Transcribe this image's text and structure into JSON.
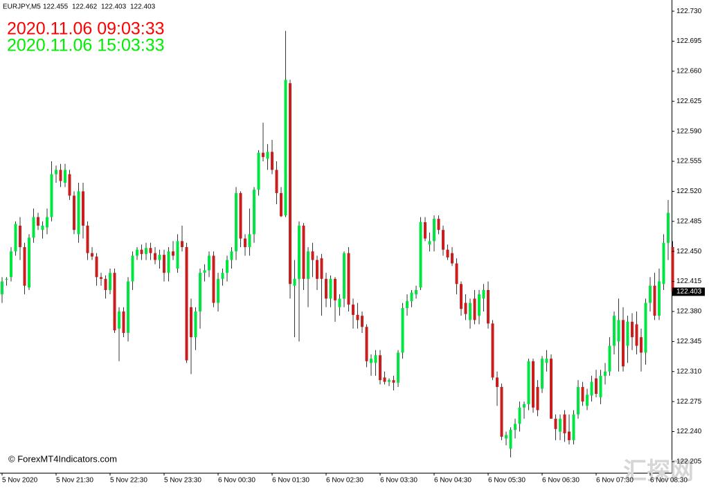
{
  "chart_data": {
    "type": "candlestick",
    "symbol": "EURJPY,M5",
    "header_values": [
      122.455,
      122.462,
      122.403,
      122.403
    ],
    "clock_local": "2020.11.06 09:03:33",
    "clock_server": "2020.11.06 15:03:33",
    "clock_local_color": "#ff0000",
    "clock_server_color": "#00ee00",
    "watermark": "© ForexMT4Indicators.com",
    "site_mark": "汇探网",
    "current_price": 122.403,
    "bull_color": "#00e640",
    "bear_color": "#c81e1e",
    "wick_color": "#333333",
    "ylim": [
      122.192,
      122.743
    ],
    "yticks": [
      {
        "value": 122.73,
        "label": "122.730"
      },
      122.695,
      {
        "value": 122.66,
        "label": "122.660"
      },
      122.625,
      {
        "value": 122.59,
        "label": "122.590"
      },
      122.555,
      {
        "value": 122.52,
        "label": "122.520"
      },
      122.485,
      {
        "value": 122.45,
        "label": "122.450"
      },
      122.415,
      {
        "value": 122.38,
        "label": "122.380"
      },
      122.345,
      {
        "value": 122.31,
        "label": "122.310"
      },
      122.275,
      {
        "value": 122.24,
        "label": "122.240"
      },
      122.205
    ],
    "categories": [
      "5 Nov 2020",
      null,
      null,
      null,
      null,
      null,
      null,
      null,
      null,
      null,
      null,
      null,
      "5 Nov 21:30",
      null,
      null,
      null,
      null,
      null,
      null,
      null,
      null,
      null,
      null,
      null,
      "5 Nov 22:30",
      null,
      null,
      null,
      null,
      null,
      null,
      null,
      null,
      null,
      null,
      null,
      "5 Nov 23:30",
      null,
      null,
      null,
      null,
      null,
      null,
      null,
      null,
      null,
      null,
      null,
      "6 Nov 00:30",
      null,
      null,
      null,
      null,
      null,
      null,
      null,
      null,
      null,
      null,
      null,
      "6 Nov 01:30",
      null,
      null,
      null,
      null,
      null,
      null,
      null,
      null,
      null,
      null,
      null,
      "6 Nov 02:30",
      null,
      null,
      null,
      null,
      null,
      null,
      null,
      null,
      null,
      null,
      null,
      "6 Nov 03:30",
      null,
      null,
      null,
      null,
      null,
      null,
      null,
      null,
      null,
      null,
      null,
      "6 Nov 04:30",
      null,
      null,
      null,
      null,
      null,
      null,
      null,
      null,
      null,
      null,
      null,
      "6 Nov 05:30",
      null,
      null,
      null,
      null,
      null,
      null,
      null,
      null,
      null,
      null,
      null,
      "6 Nov 06:30",
      null,
      null,
      null,
      null,
      null,
      null,
      null,
      null,
      null,
      null,
      null,
      "6 Nov 07:30",
      null,
      null,
      null,
      null,
      null,
      null,
      null,
      null,
      null,
      null,
      null,
      "6 Nov 08:30",
      null,
      null,
      null,
      null,
      null
    ],
    "open": [
      122.4,
      122.417,
      122.42,
      122.45,
      122.48,
      122.455,
      122.408,
      122.466,
      122.49,
      122.475,
      122.478,
      122.49,
      122.54,
      122.545,
      122.53,
      122.54,
      122.515,
      122.47,
      122.52,
      122.48,
      122.448,
      122.444,
      122.42,
      122.418,
      122.405,
      122.425,
      122.36,
      122.38,
      122.355,
      122.415,
      122.445,
      122.452,
      122.447,
      122.454,
      122.448,
      122.44,
      122.446,
      122.425,
      122.45,
      122.43,
      122.462,
      122.455,
      122.385,
      122.35,
      122.38,
      122.425,
      122.428,
      122.445,
      122.39,
      122.418,
      122.425,
      122.44,
      122.45,
      122.518,
      122.465,
      122.455,
      122.47,
      122.522,
      122.565,
      122.558,
      122.566,
      122.545,
      122.518,
      122.492,
      122.646,
      122.41,
      122.418,
      122.48,
      122.418,
      122.45,
      122.44,
      122.442,
      122.418,
      122.395,
      122.418,
      122.385,
      122.395,
      122.448,
      122.388,
      122.376,
      122.375,
      122.362,
      122.32,
      122.32,
      122.329,
      122.303,
      122.298,
      122.3,
      122.297,
      122.332,
      122.384,
      122.392,
      122.4,
      122.408,
      122.484,
      122.458,
      122.462,
      122.488,
      122.475,
      122.452,
      122.448,
      122.436,
      122.412,
      122.39,
      122.37,
      122.395,
      122.375,
      122.395,
      122.405,
      122.366,
      122.303,
      122.292,
      122.232,
      122.22,
      122.242,
      122.249,
      122.268,
      122.272,
      122.322,
      122.292,
      122.29,
      122.32,
      122.325,
      122.255,
      122.24,
      122.26,
      122.24,
      122.23,
      122.26,
      122.292,
      122.27,
      122.282,
      122.302,
      122.28,
      122.305,
      122.31,
      122.34,
      122.345,
      122.37,
      122.34,
      122.368,
      122.365,
      122.35,
      122.332,
      122.39,
      122.41,
      122.375,
      122.412,
      122.46,
      122.455
    ],
    "high": [
      122.42,
      122.42,
      122.455,
      122.485,
      122.49,
      122.46,
      122.47,
      122.5,
      122.495,
      122.485,
      122.5,
      122.555,
      122.55,
      122.552,
      122.552,
      122.545,
      122.52,
      122.53,
      122.53,
      122.485,
      122.455,
      122.448,
      122.425,
      122.422,
      122.43,
      122.43,
      122.385,
      122.385,
      122.42,
      122.45,
      122.455,
      122.458,
      122.46,
      122.46,
      122.455,
      122.452,
      122.452,
      122.455,
      122.462,
      122.47,
      122.48,
      122.46,
      122.395,
      122.385,
      122.43,
      122.435,
      122.45,
      122.45,
      122.425,
      122.43,
      122.445,
      122.455,
      122.525,
      122.52,
      122.47,
      122.5,
      122.525,
      122.568,
      122.6,
      122.575,
      122.58,
      122.555,
      122.525,
      122.707,
      122.65,
      122.44,
      122.485,
      122.483,
      122.455,
      122.46,
      122.445,
      122.447,
      122.425,
      122.422,
      122.42,
      122.4,
      122.45,
      122.455,
      122.395,
      122.39,
      122.38,
      122.365,
      122.33,
      122.335,
      122.335,
      122.31,
      122.302,
      122.305,
      122.335,
      122.39,
      122.4,
      122.405,
      122.41,
      122.49,
      122.49,
      122.472,
      122.492,
      122.492,
      122.48,
      122.458,
      122.455,
      122.442,
      122.415,
      122.4,
      122.395,
      122.405,
      122.405,
      122.412,
      122.415,
      122.37,
      122.31,
      122.296,
      122.24,
      122.245,
      122.255,
      122.275,
      122.275,
      122.325,
      122.325,
      122.3,
      122.328,
      122.335,
      122.33,
      122.26,
      122.26,
      122.265,
      122.26,
      122.265,
      122.3,
      122.298,
      122.29,
      122.305,
      122.312,
      122.312,
      122.32,
      122.35,
      122.38,
      122.395,
      122.385,
      122.375,
      122.378,
      122.38,
      122.36,
      122.395,
      122.42,
      122.425,
      122.43,
      122.47,
      122.51,
      122.462
    ],
    "low": [
      122.39,
      122.41,
      122.415,
      122.445,
      122.44,
      122.4,
      122.405,
      122.46,
      122.475,
      122.465,
      122.47,
      122.485,
      122.53,
      122.525,
      122.525,
      122.51,
      122.47,
      122.46,
      122.465,
      122.44,
      122.44,
      122.41,
      122.41,
      122.395,
      122.4,
      122.355,
      122.322,
      122.35,
      122.345,
      122.405,
      122.44,
      122.44,
      122.44,
      122.44,
      122.435,
      122.43,
      122.415,
      122.415,
      122.44,
      122.425,
      122.45,
      122.32,
      122.307,
      122.335,
      122.36,
      122.415,
      122.42,
      122.385,
      122.38,
      122.41,
      122.415,
      122.43,
      122.44,
      122.455,
      122.445,
      122.445,
      122.46,
      122.515,
      122.555,
      122.545,
      122.54,
      122.505,
      122.49,
      122.49,
      122.395,
      122.35,
      122.345,
      122.405,
      122.385,
      122.42,
      122.405,
      122.375,
      122.385,
      122.385,
      122.368,
      122.375,
      122.385,
      122.38,
      122.36,
      122.36,
      122.355,
      122.315,
      122.305,
      122.305,
      122.295,
      122.295,
      122.293,
      122.288,
      122.292,
      122.325,
      122.375,
      122.385,
      122.395,
      122.405,
      122.462,
      122.45,
      122.45,
      122.47,
      122.445,
      122.44,
      122.433,
      122.4,
      122.375,
      122.37,
      122.36,
      122.365,
      122.365,
      122.38,
      122.36,
      122.3,
      122.27,
      122.23,
      122.224,
      122.21,
      122.232,
      122.24,
      122.255,
      122.265,
      122.262,
      122.258,
      122.285,
      122.31,
      122.255,
      122.23,
      122.23,
      122.228,
      122.225,
      122.225,
      122.255,
      122.27,
      122.265,
      122.275,
      122.28,
      122.272,
      122.295,
      122.305,
      122.33,
      122.31,
      122.31,
      122.32,
      122.335,
      122.33,
      122.31,
      122.318,
      122.38,
      122.37,
      122.37,
      122.405,
      122.44,
      122.403
    ],
    "close": [
      122.415,
      122.418,
      122.45,
      122.482,
      122.455,
      122.41,
      122.466,
      122.49,
      122.48,
      122.48,
      122.49,
      122.54,
      122.545,
      122.532,
      122.545,
      122.515,
      122.475,
      122.52,
      122.48,
      122.448,
      122.444,
      122.42,
      122.418,
      122.405,
      122.425,
      122.358,
      122.38,
      122.355,
      122.415,
      122.445,
      122.452,
      122.447,
      122.454,
      122.448,
      122.44,
      122.446,
      122.425,
      122.45,
      122.445,
      122.462,
      122.455,
      122.323,
      122.35,
      122.38,
      122.425,
      122.428,
      122.445,
      122.39,
      122.418,
      122.425,
      122.44,
      122.45,
      122.518,
      122.465,
      122.455,
      122.47,
      122.522,
      122.565,
      122.56,
      122.566,
      122.545,
      122.518,
      122.491,
      122.65,
      122.412,
      122.418,
      122.48,
      122.418,
      122.45,
      122.44,
      122.418,
      122.418,
      122.395,
      122.418,
      122.393,
      122.395,
      122.448,
      122.388,
      122.376,
      122.37,
      122.362,
      122.322,
      122.325,
      122.329,
      122.3,
      122.298,
      122.3,
      122.297,
      122.332,
      122.384,
      122.392,
      122.402,
      122.405,
      122.484,
      122.465,
      122.462,
      122.488,
      122.475,
      122.452,
      122.443,
      122.436,
      122.412,
      122.383,
      122.377,
      122.39,
      122.37,
      122.4,
      122.405,
      122.366,
      122.303,
      122.292,
      122.234,
      122.236,
      122.242,
      122.249,
      122.268,
      122.272,
      122.322,
      122.268,
      122.265,
      122.325,
      122.325,
      122.255,
      122.243,
      122.255,
      122.238,
      122.23,
      122.26,
      122.292,
      122.275,
      122.283,
      122.298,
      122.284,
      122.305,
      122.31,
      122.34,
      122.375,
      122.37,
      122.316,
      122.368,
      122.35,
      122.34,
      122.332,
      122.39,
      122.41,
      122.375,
      122.415,
      122.46,
      122.495,
      122.403
    ]
  }
}
